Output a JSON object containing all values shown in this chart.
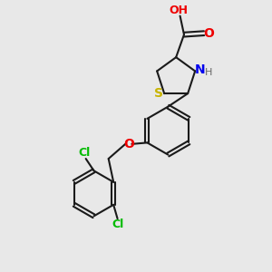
{
  "background_color": "#e8e8e8",
  "bond_color": "#1a1a1a",
  "sulfur_color": "#c8b400",
  "nitrogen_color": "#0000ee",
  "oxygen_color": "#ee0000",
  "chlorine_color": "#00bb00",
  "hydrogen_color": "#666666",
  "figsize": [
    3.0,
    3.0
  ],
  "dpi": 100,
  "xlim": [
    0,
    10
  ],
  "ylim": [
    0,
    10
  ]
}
